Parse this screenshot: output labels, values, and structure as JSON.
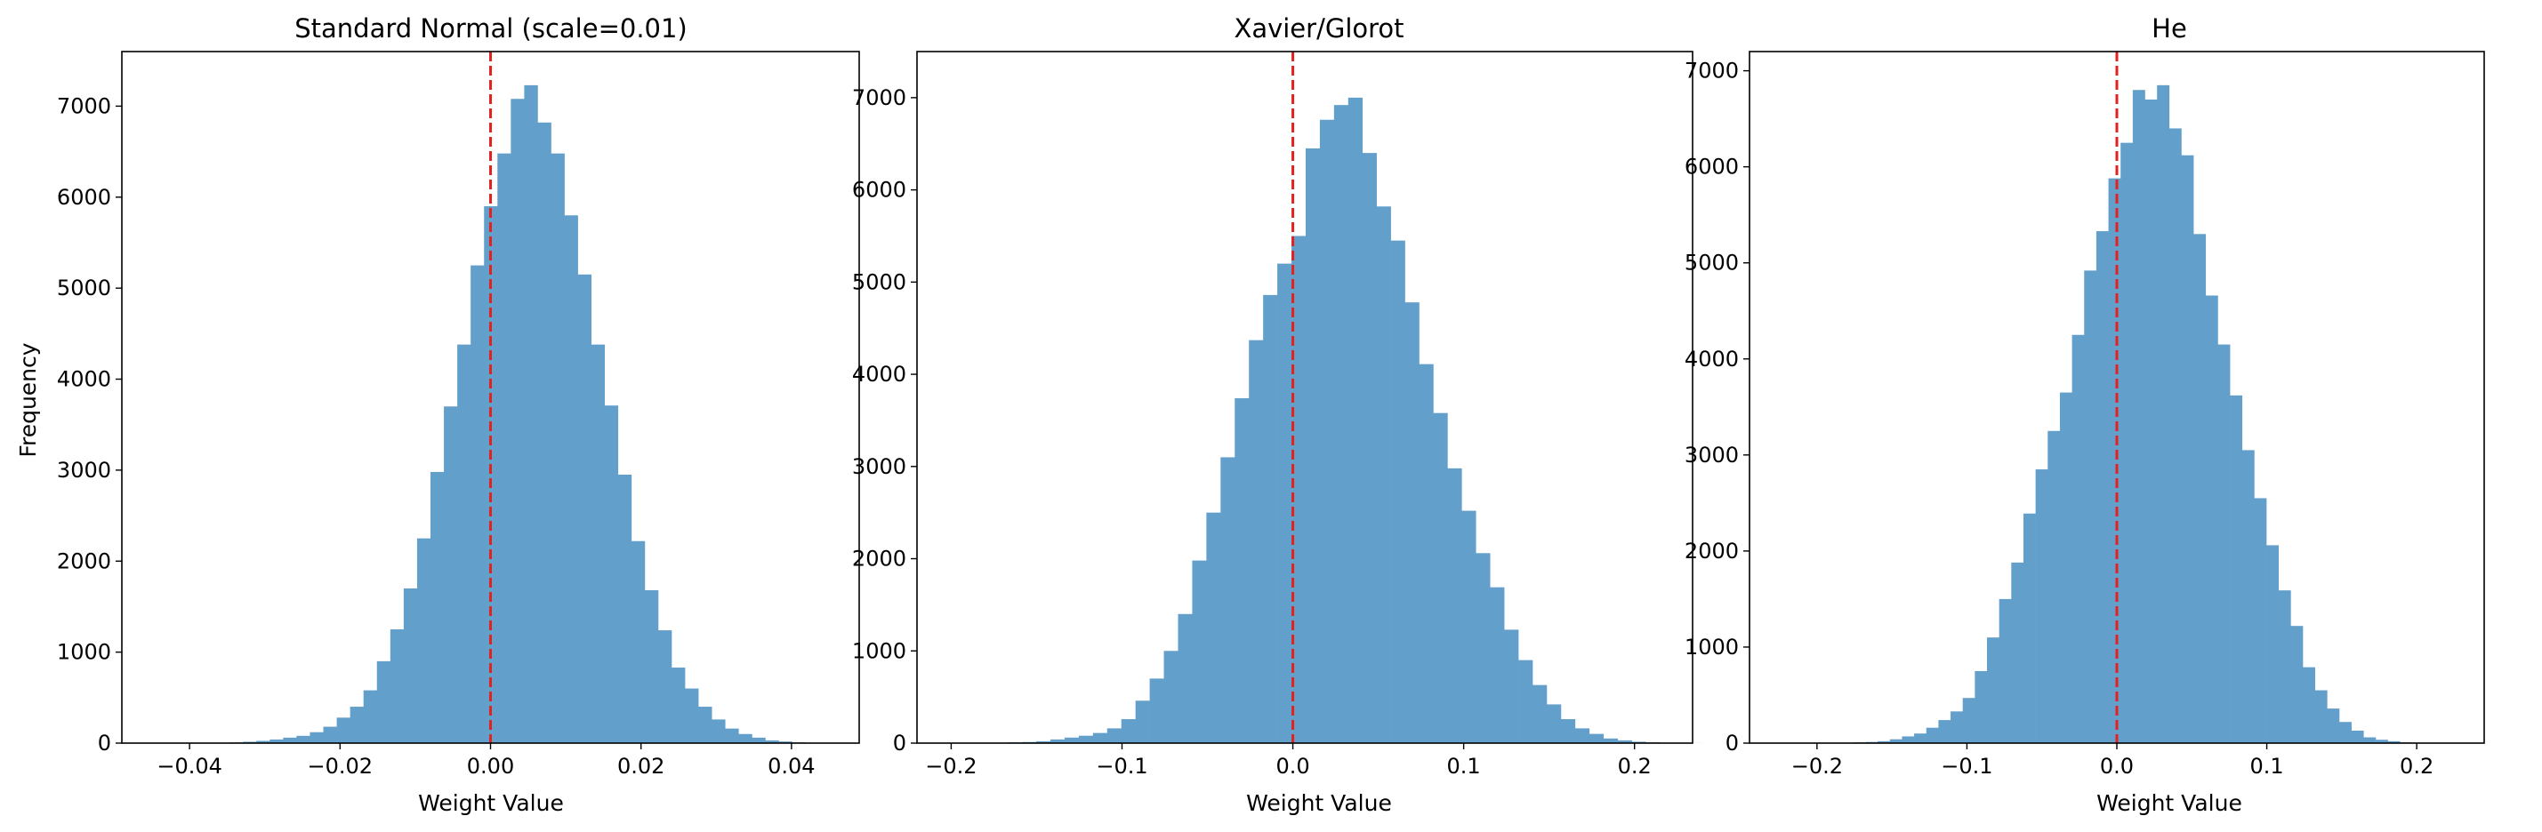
{
  "chart_data": [
    {
      "type": "bar",
      "title": "Standard Normal (scale=0.01)",
      "xlabel": "Weight Value",
      "ylabel": "Frequency",
      "xlim": [
        -0.049,
        0.049
      ],
      "ylim": [
        0,
        7600
      ],
      "xticks": [
        -0.04,
        -0.02,
        0.0,
        0.02,
        0.04
      ],
      "xtick_labels": [
        "−0.04",
        "−0.02",
        "0.00",
        "0.02",
        "0.04"
      ],
      "yticks": [
        0,
        1000,
        2000,
        3000,
        4000,
        5000,
        6000,
        7000
      ],
      "ytick_labels": [
        "0",
        "1000",
        "2000",
        "3000",
        "4000",
        "5000",
        "6000",
        "7000"
      ],
      "bin_start": -0.0418,
      "bin_width": 0.00178,
      "values": [
        2,
        2,
        3,
        5,
        8,
        15,
        25,
        40,
        60,
        80,
        120,
        180,
        280,
        400,
        580,
        900,
        1250,
        1700,
        2250,
        2980,
        3700,
        4380,
        5250,
        5900,
        6480,
        7080,
        7230,
        6820,
        6480,
        5800,
        5150,
        4380,
        3710,
        2950,
        2220,
        1680,
        1240,
        830,
        600,
        400,
        260,
        160,
        100,
        60,
        30,
        18,
        8,
        5,
        3,
        2
      ],
      "vline_x": 0.0,
      "bar_color": "#639fcb",
      "vline_color": "#e3211e"
    },
    {
      "type": "bar",
      "title": "Xavier/Glorot",
      "xlabel": "Weight Value",
      "ylabel": "",
      "xlim": [
        -0.22,
        0.234
      ],
      "ylim": [
        0,
        7500
      ],
      "xticks": [
        -0.2,
        -0.1,
        0.0,
        0.1,
        0.2
      ],
      "xtick_labels": [
        "−0.2",
        "−0.1",
        "0.0",
        "0.1",
        "0.2"
      ],
      "yticks": [
        0,
        1000,
        2000,
        3000,
        4000,
        5000,
        6000,
        7000
      ],
      "ytick_labels": [
        "0",
        "1000",
        "2000",
        "3000",
        "4000",
        "5000",
        "6000",
        "7000"
      ],
      "bin_start": -0.2,
      "bin_width": 0.0083,
      "values": [
        1,
        2,
        3,
        5,
        8,
        12,
        20,
        40,
        60,
        80,
        110,
        160,
        260,
        460,
        700,
        1000,
        1400,
        1980,
        2500,
        3100,
        3740,
        4370,
        4860,
        5200,
        5500,
        6450,
        6760,
        6920,
        7000,
        6400,
        5820,
        5450,
        4780,
        4110,
        3580,
        2980,
        2520,
        2060,
        1690,
        1230,
        900,
        630,
        420,
        260,
        160,
        100,
        50,
        30,
        15,
        8,
        4,
        2,
        1
      ],
      "vline_x": 0.0,
      "bar_color": "#639fcb",
      "vline_color": "#e3211e"
    },
    {
      "type": "bar",
      "title": "He",
      "xlabel": "Weight Value",
      "ylabel": "",
      "xlim": [
        -0.245,
        0.245
      ],
      "ylim": [
        0,
        7200
      ],
      "xticks": [
        -0.2,
        -0.1,
        0.0,
        0.1,
        0.2
      ],
      "xtick_labels": [
        "−0.2",
        "−0.1",
        "0.0",
        "0.1",
        "0.2"
      ],
      "yticks": [
        0,
        1000,
        2000,
        3000,
        4000,
        5000,
        6000,
        7000
      ],
      "ytick_labels": [
        "0",
        "1000",
        "2000",
        "3000",
        "4000",
        "5000",
        "6000",
        "7000"
      ],
      "bin_start": -0.2,
      "bin_width": 0.0081,
      "values": [
        2,
        3,
        5,
        8,
        12,
        20,
        40,
        70,
        100,
        160,
        240,
        330,
        470,
        750,
        1100,
        1500,
        1880,
        2390,
        2850,
        3250,
        3650,
        4250,
        4920,
        5330,
        5880,
        6250,
        6800,
        6700,
        6850,
        6400,
        6120,
        5300,
        4660,
        4150,
        3620,
        3050,
        2550,
        2060,
        1590,
        1220,
        790,
        550,
        360,
        220,
        130,
        60,
        35,
        20,
        8,
        5,
        2
      ],
      "vline_x": 0.0,
      "bar_color": "#639fcb",
      "vline_color": "#e3211e"
    }
  ]
}
